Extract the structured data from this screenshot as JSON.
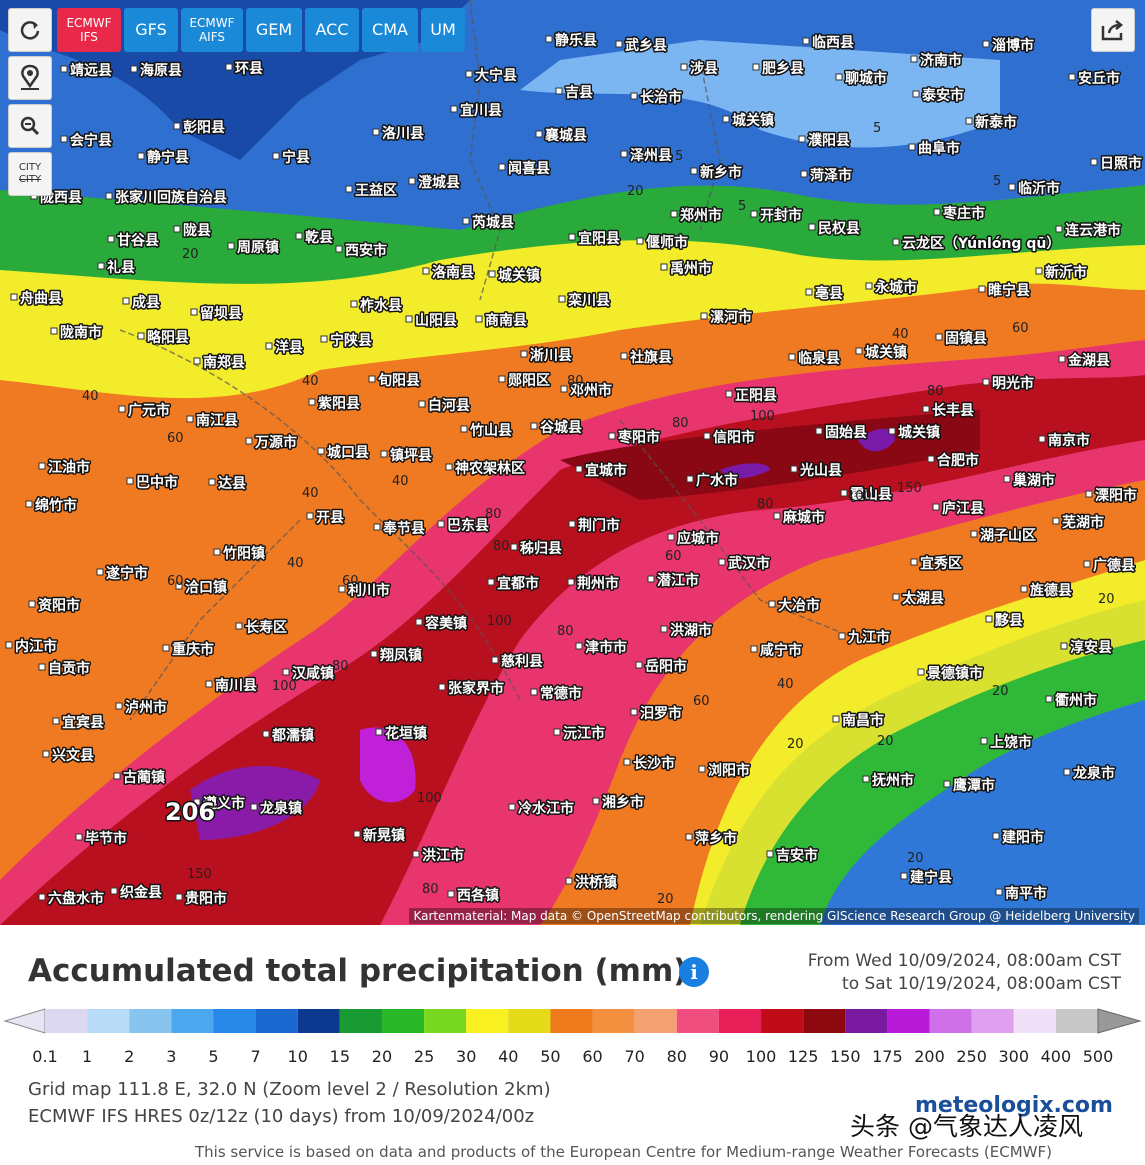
{
  "toolbar": {
    "models": [
      "ECMWF IFS",
      "GFS",
      "ECMWF AIFS",
      "GEM",
      "ACC",
      "CMA",
      "UM"
    ],
    "active_index": 0,
    "city_button": [
      "CITY",
      "CITY"
    ]
  },
  "map": {
    "attribution": "Kartenmaterial: Map data © OpenStreetMap contributors, rendering GIScience Research Group @ Heidelberg University",
    "cities": [
      "靖远县",
      "海原县",
      "环县",
      "静乐县",
      "武乡县",
      "临西县",
      "济南市",
      "淄博市",
      "大宁县",
      "吉县",
      "长治市",
      "涉县",
      "肥乡县",
      "聊城市",
      "泰安市",
      "安丘市",
      "彭阳县",
      "宜川县",
      "洛川县",
      "襄城县",
      "城关镇",
      "濮阳县",
      "新泰市",
      "会宁县",
      "静宁县",
      "宁县",
      "泽州县",
      "曲阜市",
      "闻喜县",
      "新乡市",
      "菏泽市",
      "日照市",
      "陇西县",
      "张家川回族自治县",
      "澄城县",
      "王益区",
      "临沂市",
      "陇县",
      "芮城县",
      "郑州市",
      "开封市",
      "民权县",
      "枣庄市",
      "甘谷县",
      "周原镇",
      "乾县",
      "西安市",
      "宜阳县",
      "偃师市",
      "云龙区（Yúnlóng qū）",
      "连云港市",
      "礼县",
      "洛南县",
      "城关镇",
      "禹州市",
      "新沂市",
      "舟曲县",
      "成县",
      "留坝县",
      "柞水县",
      "栾川县",
      "亳县",
      "永城市",
      "睢宁县",
      "陇南市",
      "略阳县",
      "山阳县",
      "商南县",
      "漯河市",
      "南郑县",
      "洋县",
      "宁陕县",
      "淅川县",
      "社旗县",
      "临泉县",
      "城关镇",
      "固镇县",
      "金湖县",
      "旬阳县",
      "郧阳区",
      "邓州市",
      "正阳县",
      "明光市",
      "广元市",
      "紫阳县",
      "白河县",
      "长丰县",
      "南江县",
      "竹山县",
      "谷城县",
      "枣阳市",
      "信阳市",
      "固始县",
      "城关镇",
      "南京市",
      "万源市",
      "城口县",
      "镇坪县",
      "神农架林区",
      "宜城市",
      "光山县",
      "合肥市",
      "江油市",
      "巴中市",
      "达县",
      "广水市",
      "巢湖市",
      "溧阳市",
      "绵竹市",
      "开县",
      "奉节县",
      "巴东县",
      "荆门市",
      "麻城市",
      "霍山县",
      "庐江县",
      "芜湖市",
      "秭归县",
      "应城市",
      "湖子山区",
      "遂宁市",
      "竹阳镇",
      "宜都市",
      "荆州市",
      "潜江市",
      "武汉市",
      "宜秀区",
      "广德县",
      "资阳市",
      "洽口镇",
      "利川市",
      "旌德县",
      "大冶市",
      "太湖县",
      "长寿区",
      "容美镇",
      "津市市",
      "洪湖市",
      "黟县",
      "内江市",
      "重庆市",
      "慈利县",
      "岳阳市",
      "咸宁市",
      "九江市",
      "景德镇市",
      "淳安县",
      "自贡市",
      "汉咸镇",
      "翔凤镇",
      "张家界市",
      "常德市",
      "衢州市",
      "南川县",
      "泸州市",
      "汨罗市",
      "南昌市",
      "宜宾县",
      "都濡镇",
      "花垣镇",
      "沅江市",
      "上饶市",
      "兴文县",
      "长沙市",
      "浏阳市",
      "抚州市",
      "鹰潭市",
      "龙泉市",
      "古蔺镇",
      "遵义市",
      "龙泉镇",
      "毕节市",
      "冷水江市",
      "湘乡市",
      "萍乡市",
      "建阳市",
      "新晃镇",
      "洪江市",
      "吉安市",
      "六盘水市",
      "织金县",
      "贵阳市",
      "西各镇",
      "洪桥镇",
      "建宁县",
      "南平市"
    ],
    "contour_labels": [
      40,
      60,
      40,
      80,
      100,
      80,
      40,
      60,
      80,
      100,
      150,
      80,
      80,
      80,
      60,
      60,
      40,
      80,
      100,
      100,
      80,
      150,
      100,
      80,
      60,
      40,
      20,
      20,
      20,
      20,
      20,
      20,
      20,
      20,
      5,
      5,
      5,
      5,
      40,
      40,
      60,
      206
    ]
  },
  "panel": {
    "title": "Accumulated total precipitation (mm)",
    "period_from": "From Wed 10/09/2024, 08:00am CST",
    "period_to": "to Sat 10/19/2024, 08:00am CST",
    "grid_info": "Grid map 111.8 E, 32.0 N (Zoom level 2 / Resolution 2km)",
    "model_info": "ECMWF IFS HRES 0z/12z (10 days) from 10/09/2024/00z",
    "disclaimer": "This service is based on data and products of the European Centre for Medium-range Weather Forecasts (ECMWF)"
  },
  "legend": {
    "labels": [
      0.1,
      1,
      2,
      3,
      5,
      7,
      10,
      15,
      20,
      25,
      30,
      40,
      50,
      60,
      70,
      80,
      90,
      100,
      125,
      150,
      175,
      200,
      250,
      300,
      400,
      500
    ],
    "colors": [
      "#dcd8f0",
      "#b8dcf8",
      "#88c4f0",
      "#4ca8ee",
      "#2888e8",
      "#1a68d0",
      "#0c3890",
      "#1a9a32",
      "#28b828",
      "#78d820",
      "#f8f020",
      "#e4dc18",
      "#ee7a1c",
      "#f29040",
      "#f4a070",
      "#f04e7e",
      "#e8205a",
      "#c00c18",
      "#8e0810",
      "#7a1aa0",
      "#b81ad8",
      "#d070e8",
      "#e0a0f0",
      "#f0e0f8",
      "#c8c8c8"
    ],
    "under_color": "#e8e4f4",
    "over_color": "#999999"
  },
  "watermark": {
    "text": "头条 @气象达人凌风",
    "logo": "meteologix.com"
  }
}
